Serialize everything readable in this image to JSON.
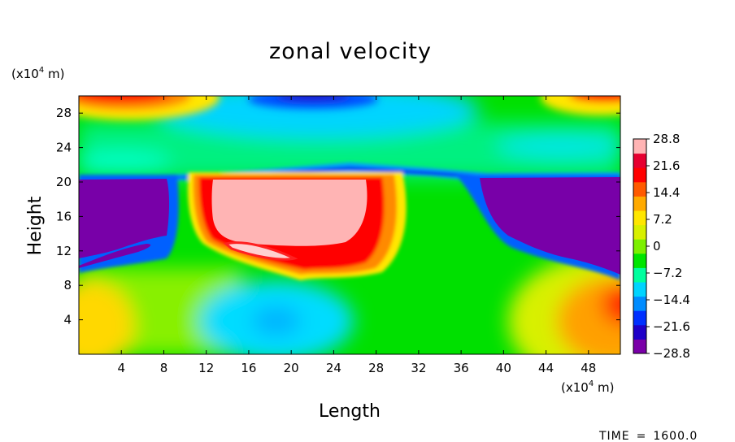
{
  "chart_data": {
    "type": "heatmap",
    "title": "zonal velocity",
    "xlabel": "Length",
    "ylabel": "Height",
    "x_unit_prefix": "(x10",
    "x_unit_exp": "4",
    "x_unit_suffix": " m)",
    "y_unit_prefix": "(x10",
    "y_unit_exp": "4",
    "y_unit_suffix": " m)",
    "xlim": [
      0,
      51
    ],
    "ylim": [
      0,
      30
    ],
    "x_ticks": [
      4,
      8,
      12,
      16,
      20,
      24,
      28,
      32,
      36,
      40,
      44,
      48
    ],
    "y_ticks": [
      4,
      8,
      12,
      16,
      20,
      24,
      28
    ],
    "colorbar_ticks": [
      "28.8",
      "21.6",
      "14.4",
      "7.2",
      "0",
      "-7.2",
      "-14.4",
      "-21.6",
      "-28.8"
    ],
    "colorbar_range": [
      -28.8,
      28.8
    ],
    "colorbar_colors": [
      "#7a00a8",
      "#1e00c8",
      "#0030ff",
      "#008cff",
      "#00d4ff",
      "#00ff9e",
      "#00e600",
      "#7cf000",
      "#d8f000",
      "#ffe600",
      "#ffaa00",
      "#ff5a00",
      "#ff0000",
      "#e60030",
      "#ffb4b4"
    ],
    "regions": [
      {
        "name": "low-left-purple",
        "x": [
          0,
          9.5
        ],
        "y": [
          10,
          20.5
        ],
        "value": -30
      },
      {
        "name": "low-right-purple",
        "x": [
          37,
          51
        ],
        "y": [
          9,
          21
        ],
        "value": -30
      },
      {
        "name": "jet-core-pink",
        "x": [
          12,
          29
        ],
        "y": [
          10,
          20.5
        ],
        "value": 30
      },
      {
        "name": "top-left-red",
        "x": [
          0,
          10
        ],
        "y": [
          28,
          30
        ],
        "value": 25
      },
      {
        "name": "top-right-red",
        "x": [
          44,
          51
        ],
        "y": [
          28,
          30
        ],
        "value": 25
      },
      {
        "name": "top-mid-blue",
        "x": [
          20,
          38
        ],
        "y": [
          28,
          30
        ],
        "value": -22
      },
      {
        "name": "mid-blue-band",
        "x": [
          20,
          51
        ],
        "y": [
          20,
          22
        ],
        "value": -18
      },
      {
        "name": "bottom-right-orange",
        "x": [
          44,
          51
        ],
        "y": [
          0,
          9
        ],
        "value": 20
      },
      {
        "name": "bottom-left-yellow",
        "x": [
          0,
          6
        ],
        "y": [
          0,
          7
        ],
        "value": 10
      },
      {
        "name": "bottom-mid-cyan",
        "x": [
          15,
          25
        ],
        "y": [
          0,
          8
        ],
        "value": -12
      }
    ]
  },
  "footer": {
    "time_label": "TIME",
    "time_sep": "=",
    "time_value": "1600.0"
  }
}
